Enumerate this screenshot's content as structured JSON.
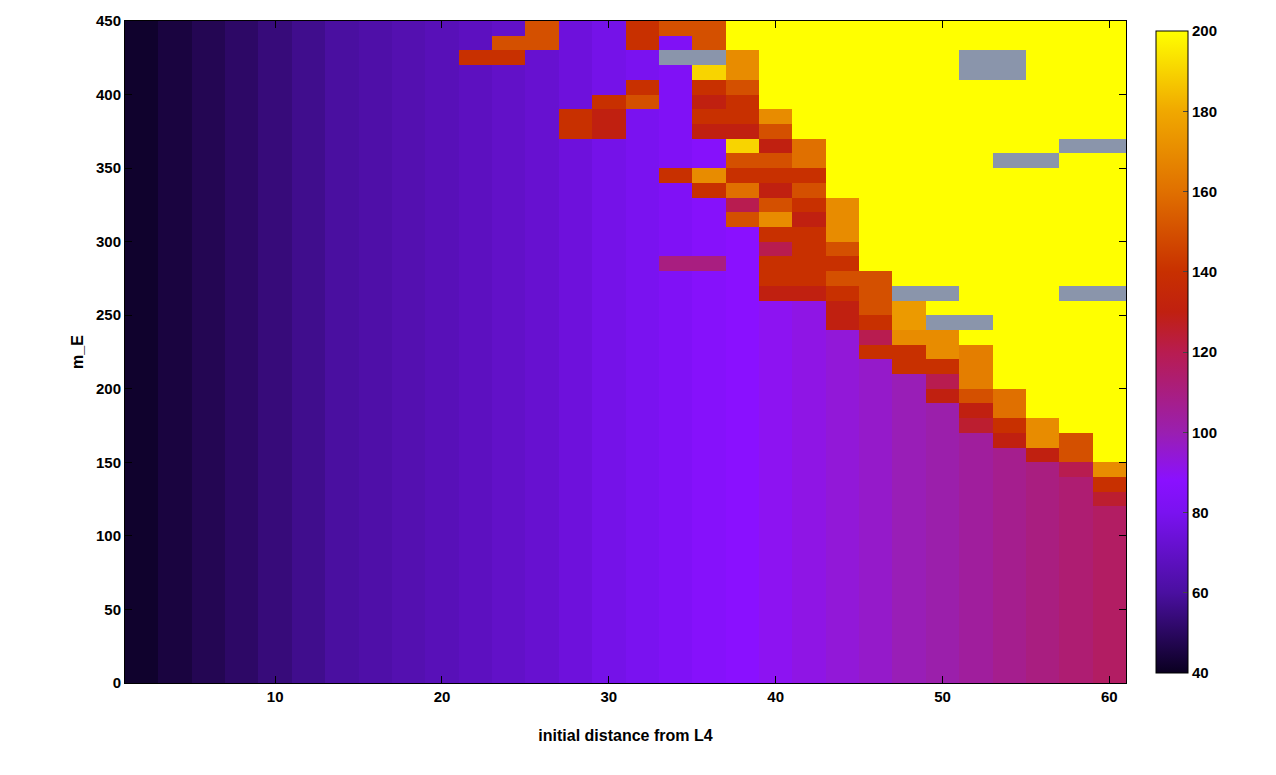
{
  "chart_data": {
    "type": "heatmap",
    "x_label": "initial distance from L4",
    "y_label": "m_E",
    "xlim": [
      1,
      61
    ],
    "ylim": [
      0,
      450
    ],
    "xticks": [
      10,
      20,
      30,
      40,
      50,
      60
    ],
    "yticks": [
      0,
      50,
      100,
      150,
      200,
      250,
      300,
      350,
      400,
      450
    ],
    "zlim": [
      40,
      200
    ],
    "zticks": [
      40,
      60,
      80,
      100,
      120,
      140,
      160,
      180,
      200
    ],
    "grid": false,
    "x": [
      2,
      4,
      6,
      8,
      10,
      12,
      14,
      16,
      18,
      20,
      22,
      24,
      26,
      28,
      30,
      32,
      34,
      36,
      38,
      40,
      42,
      44,
      46,
      48,
      50,
      52,
      54,
      56,
      58,
      60
    ],
    "y": [
      5,
      15,
      25,
      35,
      45,
      55,
      65,
      75,
      85,
      95,
      105,
      115,
      125,
      135,
      145,
      155,
      165,
      175,
      185,
      195,
      205,
      215,
      225,
      235,
      245,
      255,
      265,
      275,
      285,
      295,
      305,
      315,
      325,
      335,
      345,
      355,
      365,
      375,
      385,
      395,
      405,
      415,
      425,
      435,
      445
    ],
    "z": [
      [
        42,
        45,
        48,
        51,
        54,
        57,
        60,
        62,
        64,
        66,
        68,
        70,
        72,
        75,
        78,
        80,
        83,
        86,
        88,
        90,
        92,
        94,
        96,
        99,
        101,
        104,
        107,
        110,
        113,
        116
      ],
      [
        42,
        45,
        48,
        51,
        54,
        57,
        60,
        62,
        64,
        66,
        68,
        70,
        72,
        75,
        78,
        80,
        83,
        86,
        88,
        90,
        92,
        94,
        96,
        99,
        101,
        104,
        107,
        110,
        113,
        116
      ],
      [
        42,
        45,
        48,
        51,
        54,
        57,
        60,
        62,
        64,
        66,
        68,
        70,
        72,
        75,
        78,
        80,
        83,
        86,
        88,
        90,
        92,
        94,
        96,
        99,
        101,
        104,
        107,
        110,
        113,
        116
      ],
      [
        42,
        45,
        48,
        51,
        54,
        57,
        60,
        62,
        64,
        66,
        68,
        70,
        72,
        75,
        78,
        80,
        83,
        86,
        88,
        90,
        92,
        94,
        96,
        99,
        101,
        104,
        107,
        110,
        113,
        116
      ],
      [
        42,
        45,
        48,
        51,
        54,
        57,
        60,
        62,
        64,
        66,
        68,
        70,
        72,
        75,
        78,
        80,
        83,
        86,
        88,
        90,
        92,
        94,
        96,
        99,
        101,
        104,
        107,
        110,
        113,
        116
      ],
      [
        42,
        45,
        48,
        51,
        54,
        57,
        60,
        62,
        64,
        66,
        68,
        70,
        72,
        75,
        78,
        80,
        83,
        86,
        88,
        90,
        92,
        94,
        96,
        99,
        101,
        104,
        107,
        110,
        113,
        116
      ],
      [
        42,
        45,
        48,
        51,
        54,
        57,
        60,
        62,
        64,
        66,
        68,
        70,
        72,
        75,
        78,
        80,
        83,
        86,
        88,
        90,
        92,
        94,
        96,
        99,
        101,
        104,
        107,
        110,
        113,
        116
      ],
      [
        42,
        45,
        48,
        51,
        54,
        57,
        60,
        62,
        64,
        66,
        68,
        70,
        72,
        75,
        78,
        80,
        83,
        86,
        88,
        90,
        92,
        94,
        96,
        99,
        101,
        104,
        107,
        110,
        113,
        116
      ],
      [
        42,
        45,
        48,
        51,
        54,
        57,
        60,
        62,
        64,
        66,
        68,
        70,
        72,
        75,
        78,
        80,
        83,
        86,
        88,
        90,
        92,
        94,
        96,
        99,
        101,
        104,
        107,
        110,
        113,
        116
      ],
      [
        42,
        45,
        48,
        51,
        54,
        57,
        60,
        62,
        64,
        66,
        68,
        70,
        72,
        75,
        78,
        80,
        83,
        86,
        88,
        90,
        92,
        94,
        96,
        99,
        101,
        104,
        107,
        110,
        113,
        116
      ],
      [
        42,
        45,
        48,
        51,
        54,
        57,
        60,
        62,
        64,
        66,
        68,
        70,
        72,
        75,
        78,
        80,
        83,
        86,
        88,
        90,
        92,
        94,
        96,
        99,
        101,
        104,
        107,
        110,
        113,
        116
      ],
      [
        42,
        45,
        48,
        51,
        54,
        57,
        60,
        62,
        64,
        66,
        68,
        70,
        72,
        75,
        78,
        80,
        83,
        86,
        88,
        90,
        92,
        94,
        96,
        99,
        101,
        104,
        107,
        110,
        113,
        116
      ],
      [
        42,
        45,
        48,
        51,
        54,
        57,
        60,
        62,
        64,
        66,
        68,
        70,
        72,
        75,
        78,
        80,
        83,
        86,
        88,
        90,
        92,
        94,
        96,
        99,
        101,
        104,
        107,
        110,
        113,
        125
      ],
      [
        42,
        45,
        48,
        51,
        54,
        57,
        60,
        62,
        64,
        66,
        68,
        70,
        72,
        75,
        78,
        80,
        83,
        86,
        88,
        90,
        92,
        94,
        96,
        99,
        101,
        104,
        107,
        110,
        113,
        140
      ],
      [
        42,
        45,
        48,
        51,
        54,
        57,
        60,
        62,
        64,
        66,
        68,
        70,
        72,
        75,
        78,
        80,
        83,
        86,
        88,
        90,
        92,
        94,
        96,
        99,
        101,
        104,
        107,
        110,
        120,
        170
      ],
      [
        42,
        45,
        48,
        51,
        54,
        57,
        60,
        62,
        64,
        66,
        68,
        70,
        72,
        75,
        78,
        80,
        83,
        86,
        88,
        90,
        92,
        94,
        96,
        99,
        101,
        104,
        107,
        130,
        150,
        200
      ],
      [
        42,
        45,
        48,
        51,
        54,
        57,
        60,
        62,
        64,
        66,
        68,
        70,
        72,
        75,
        78,
        80,
        83,
        86,
        88,
        90,
        92,
        94,
        96,
        99,
        101,
        104,
        130,
        170,
        150,
        200
      ],
      [
        42,
        45,
        48,
        51,
        54,
        57,
        60,
        62,
        64,
        66,
        68,
        70,
        72,
        75,
        78,
        80,
        83,
        86,
        88,
        90,
        92,
        94,
        96,
        99,
        101,
        125,
        140,
        170,
        200,
        200
      ],
      [
        42,
        45,
        48,
        51,
        54,
        57,
        60,
        62,
        64,
        66,
        68,
        70,
        72,
        75,
        78,
        80,
        83,
        86,
        88,
        90,
        92,
        94,
        96,
        99,
        101,
        130,
        160,
        200,
        200,
        200
      ],
      [
        42,
        45,
        48,
        51,
        54,
        57,
        60,
        62,
        64,
        66,
        68,
        70,
        72,
        75,
        78,
        80,
        83,
        86,
        88,
        90,
        92,
        94,
        96,
        99,
        130,
        150,
        160,
        200,
        200,
        200
      ],
      [
        42,
        45,
        48,
        51,
        54,
        57,
        60,
        62,
        64,
        66,
        68,
        70,
        72,
        75,
        78,
        80,
        83,
        86,
        88,
        90,
        92,
        94,
        96,
        99,
        120,
        165,
        200,
        200,
        200,
        200
      ],
      [
        42,
        45,
        48,
        51,
        54,
        57,
        60,
        62,
        64,
        66,
        68,
        70,
        72,
        75,
        78,
        80,
        83,
        86,
        88,
        90,
        92,
        94,
        96,
        140,
        140,
        165,
        200,
        200,
        200,
        200
      ],
      [
        42,
        45,
        48,
        51,
        54,
        57,
        60,
        62,
        64,
        66,
        68,
        70,
        72,
        75,
        78,
        80,
        83,
        86,
        88,
        90,
        92,
        94,
        140,
        140,
        170,
        165,
        200,
        200,
        200,
        200
      ],
      [
        42,
        45,
        48,
        51,
        54,
        57,
        60,
        62,
        64,
        66,
        68,
        70,
        72,
        75,
        78,
        80,
        83,
        86,
        88,
        90,
        92,
        94,
        120,
        170,
        170,
        200,
        200,
        200,
        200,
        200
      ],
      [
        42,
        45,
        48,
        51,
        54,
        57,
        60,
        62,
        64,
        66,
        68,
        70,
        72,
        75,
        78,
        80,
        83,
        86,
        88,
        90,
        92,
        130,
        140,
        175,
        null,
        null,
        200,
        200,
        200,
        200
      ],
      [
        42,
        45,
        48,
        51,
        54,
        57,
        60,
        62,
        64,
        66,
        68,
        70,
        72,
        75,
        78,
        80,
        83,
        86,
        88,
        90,
        92,
        130,
        150,
        175,
        200,
        200,
        200,
        200,
        200,
        200
      ],
      [
        42,
        45,
        48,
        51,
        54,
        57,
        60,
        62,
        64,
        66,
        68,
        70,
        72,
        75,
        78,
        80,
        83,
        86,
        88,
        130,
        130,
        140,
        150,
        null,
        null,
        200,
        200,
        200,
        null,
        null
      ],
      [
        42,
        45,
        48,
        51,
        54,
        57,
        60,
        62,
        64,
        66,
        68,
        70,
        72,
        75,
        78,
        80,
        83,
        86,
        88,
        140,
        140,
        150,
        150,
        200,
        200,
        200,
        200,
        200,
        200,
        200
      ],
      [
        42,
        45,
        48,
        51,
        54,
        57,
        60,
        62,
        64,
        66,
        68,
        70,
        72,
        75,
        78,
        80,
        110,
        110,
        88,
        140,
        140,
        140,
        200,
        200,
        200,
        200,
        200,
        200,
        200,
        200
      ],
      [
        42,
        45,
        48,
        51,
        54,
        57,
        60,
        62,
        64,
        66,
        68,
        70,
        72,
        75,
        78,
        80,
        83,
        86,
        88,
        120,
        140,
        150,
        200,
        200,
        200,
        200,
        200,
        200,
        200,
        200
      ],
      [
        42,
        45,
        48,
        51,
        54,
        57,
        60,
        62,
        64,
        66,
        68,
        70,
        72,
        75,
        78,
        80,
        83,
        86,
        88,
        140,
        140,
        170,
        200,
        200,
        200,
        200,
        200,
        200,
        200,
        200
      ],
      [
        42,
        45,
        48,
        51,
        54,
        57,
        60,
        62,
        64,
        66,
        68,
        70,
        72,
        75,
        78,
        80,
        83,
        86,
        150,
        170,
        130,
        170,
        200,
        200,
        200,
        200,
        200,
        200,
        200,
        200
      ],
      [
        42,
        45,
        48,
        51,
        54,
        57,
        60,
        62,
        64,
        66,
        68,
        70,
        72,
        75,
        78,
        80,
        83,
        86,
        120,
        150,
        140,
        170,
        200,
        200,
        200,
        200,
        200,
        200,
        200,
        200
      ],
      [
        42,
        45,
        48,
        51,
        54,
        57,
        60,
        62,
        64,
        66,
        68,
        70,
        72,
        75,
        78,
        80,
        83,
        140,
        160,
        130,
        150,
        200,
        200,
        200,
        200,
        200,
        200,
        200,
        200,
        200
      ],
      [
        42,
        45,
        48,
        51,
        54,
        57,
        60,
        62,
        64,
        66,
        68,
        70,
        72,
        75,
        78,
        80,
        140,
        170,
        140,
        140,
        140,
        200,
        200,
        200,
        200,
        200,
        200,
        200,
        200,
        200
      ],
      [
        42,
        45,
        48,
        51,
        54,
        57,
        60,
        62,
        64,
        66,
        68,
        70,
        72,
        75,
        78,
        80,
        83,
        86,
        150,
        150,
        160,
        200,
        200,
        200,
        200,
        200,
        null,
        null,
        200,
        200
      ],
      [
        42,
        45,
        48,
        51,
        54,
        57,
        60,
        62,
        64,
        66,
        68,
        70,
        72,
        75,
        78,
        80,
        83,
        86,
        190,
        130,
        160,
        200,
        200,
        200,
        200,
        200,
        200,
        200,
        null,
        null
      ],
      [
        42,
        45,
        48,
        51,
        54,
        57,
        60,
        62,
        64,
        66,
        68,
        70,
        72,
        140,
        130,
        80,
        83,
        130,
        130,
        150,
        200,
        200,
        200,
        200,
        200,
        200,
        200,
        200,
        200,
        200
      ],
      [
        42,
        45,
        48,
        51,
        54,
        57,
        60,
        62,
        64,
        66,
        68,
        70,
        72,
        140,
        130,
        80,
        83,
        140,
        140,
        170,
        200,
        200,
        200,
        200,
        200,
        200,
        200,
        200,
        200,
        200
      ],
      [
        42,
        45,
        48,
        51,
        54,
        57,
        60,
        62,
        64,
        66,
        68,
        70,
        72,
        75,
        140,
        150,
        83,
        130,
        140,
        200,
        200,
        200,
        200,
        200,
        200,
        200,
        200,
        200,
        200,
        200
      ],
      [
        42,
        45,
        48,
        51,
        54,
        57,
        60,
        62,
        64,
        66,
        68,
        70,
        72,
        75,
        78,
        140,
        83,
        140,
        150,
        200,
        200,
        200,
        200,
        200,
        200,
        200,
        200,
        200,
        200,
        200
      ],
      [
        42,
        45,
        48,
        51,
        54,
        57,
        60,
        62,
        64,
        66,
        68,
        70,
        72,
        75,
        78,
        80,
        83,
        190,
        170,
        200,
        200,
        200,
        200,
        200,
        200,
        null,
        null,
        200,
        200,
        200
      ],
      [
        42,
        45,
        48,
        51,
        54,
        57,
        60,
        62,
        64,
        66,
        140,
        140,
        72,
        75,
        78,
        80,
        null,
        null,
        170,
        200,
        200,
        200,
        200,
        200,
        200,
        null,
        null,
        200,
        200,
        200
      ],
      [
        42,
        45,
        48,
        51,
        54,
        57,
        60,
        62,
        64,
        66,
        68,
        150,
        150,
        75,
        78,
        140,
        83,
        150,
        200,
        200,
        200,
        200,
        200,
        200,
        200,
        200,
        200,
        200,
        200,
        200
      ],
      [
        42,
        45,
        48,
        51,
        54,
        57,
        60,
        62,
        64,
        66,
        68,
        70,
        150,
        75,
        78,
        140,
        150,
        150,
        200,
        200,
        200,
        200,
        200,
        200,
        200,
        200,
        200,
        200,
        200,
        200
      ]
    ]
  }
}
